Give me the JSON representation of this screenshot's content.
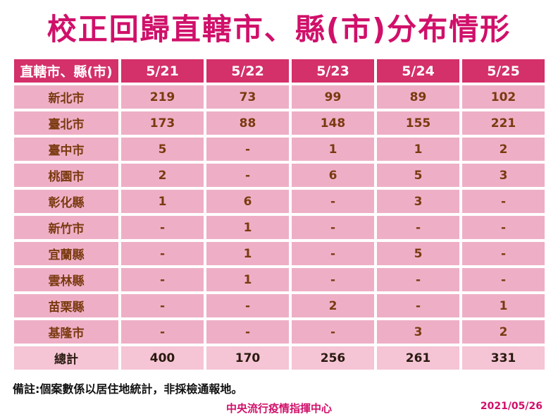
{
  "title": "校正回歸直轄市、縣(市)分布情形",
  "chart_data": {
    "type": "table",
    "columns": [
      "直轄市、縣(市)",
      "5/21",
      "5/22",
      "5/23",
      "5/24",
      "5/25"
    ],
    "rows": [
      [
        "新北市",
        "219",
        "73",
        "99",
        "89",
        "102"
      ],
      [
        "臺北市",
        "173",
        "88",
        "148",
        "155",
        "221"
      ],
      [
        "臺中市",
        "5",
        "-",
        "1",
        "1",
        "2"
      ],
      [
        "桃園市",
        "2",
        "-",
        "6",
        "5",
        "3"
      ],
      [
        "彰化縣",
        "1",
        "6",
        "-",
        "3",
        "-"
      ],
      [
        "新竹市",
        "-",
        "1",
        "-",
        "-",
        "-"
      ],
      [
        "宜蘭縣",
        "-",
        "1",
        "-",
        "5",
        "-"
      ],
      [
        "雲林縣",
        "-",
        "1",
        "-",
        "-",
        "-"
      ],
      [
        "苗栗縣",
        "-",
        "-",
        "2",
        "-",
        "1"
      ],
      [
        "基隆市",
        "-",
        "-",
        "-",
        "3",
        "2"
      ]
    ],
    "total": [
      "總計",
      "400",
      "170",
      "256",
      "261",
      "331"
    ]
  },
  "note": "備註:個案數係以居住地統計，非採檢通報地。",
  "organization": "中央流行疫情指揮中心",
  "date": "2021/05/26",
  "colors": {
    "title": "#d0106a",
    "header": "#d4306a",
    "row": "#eeafc6",
    "total_row": "#f5c5d5",
    "cell_text": "#7a3a10"
  }
}
